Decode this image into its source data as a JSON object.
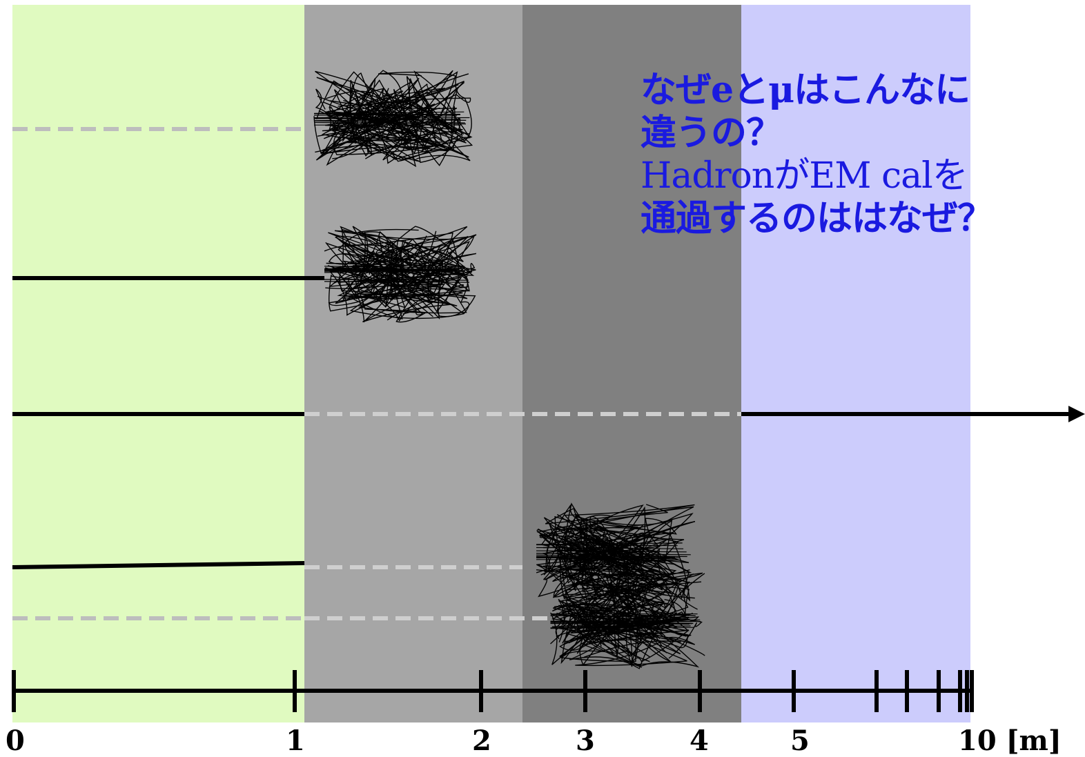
{
  "layers": [
    {
      "id": "tracker",
      "color": "#e0fac0"
    },
    {
      "id": "em-calorimeter",
      "color": "#a6a6a6"
    },
    {
      "id": "hadron-calorimeter",
      "color": "#808080"
    },
    {
      "id": "muon-system",
      "color": "#ccccfc"
    }
  ],
  "question": {
    "line1": "なぜeとμはこんなに",
    "line2": "違うの？",
    "line3": "HadronがEM calを",
    "line4": "通過するのははなぜ？"
  },
  "axis": {
    "ticks": [
      "0",
      "1",
      "2",
      "3",
      "4",
      "5",
      "10 [m]"
    ]
  },
  "colors": {
    "solid_track": "#000000",
    "dashed_track_tracker": "#bdbdbd",
    "dashed_track_calo": "#cfcfcf",
    "question_text": "#1a1ae0"
  }
}
